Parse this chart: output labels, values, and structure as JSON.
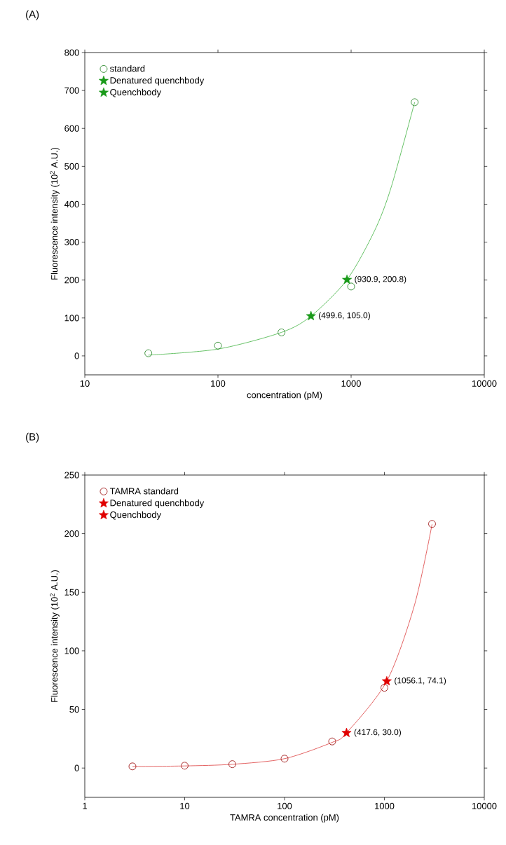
{
  "chart_data": [
    {
      "type": "scatter",
      "title": "(A)",
      "xlabel": "concentration (pM)",
      "ylabel": "Fluorescence intensity (10$^{2}$ A.U.)",
      "log": "x",
      "xlim": [
        10,
        10000
      ],
      "ylim": [
        -50,
        800
      ],
      "xticks": [
        10,
        100,
        1000,
        10000
      ],
      "yticks": [
        0,
        100,
        200,
        300,
        400,
        500,
        600,
        700,
        800
      ],
      "legend": "top left",
      "grid": false,
      "series": [
        {
          "name": "standard",
          "type": "scatter",
          "marker": "circle",
          "color": "#2e8b2e",
          "x": [
            30,
            100,
            300,
            1000,
            3000
          ],
          "values": [
            7,
            27,
            62,
            183,
            669
          ]
        },
        {
          "type": "line",
          "marker": "none",
          "color": "#55bb55",
          "x": [
            30,
            100,
            300,
            499.6,
            930.9,
            1500,
            2000,
            3000
          ],
          "values": [
            2,
            18,
            62,
            105,
            200.8,
            330,
            445,
            669
          ]
        },
        {
          "name": "Denatured quenchbody",
          "type": "scatter",
          "marker": "star",
          "color": "#1a9a1a",
          "x": [
            930.9
          ],
          "values": [
            200.8
          ]
        },
        {
          "name": "Quenchbody",
          "type": "scatter",
          "marker": "star",
          "color": "#1a9a1a",
          "x": [
            499.6
          ],
          "values": [
            105.0
          ]
        }
      ],
      "annotations": [
        {
          "text": "(930.9, 200.8)",
          "x": 930.9,
          "y": 200.8
        },
        {
          "text": "(499.6, 105.0)",
          "x": 499.6,
          "y": 105.0
        }
      ]
    },
    {
      "type": "scatter",
      "title": "(B)",
      "xlabel": "TAMRA concentration (pM)",
      "ylabel": "Fluorescence intensity (10$^{2}$ A.U.)",
      "log": "x",
      "xlim": [
        1,
        10000
      ],
      "ylim": [
        -25,
        250
      ],
      "xticks": [
        1,
        10,
        100,
        1000,
        10000
      ],
      "yticks": [
        0,
        50,
        100,
        150,
        200,
        250
      ],
      "legend": "top left",
      "grid": false,
      "series": [
        {
          "name": "TAMRA standard",
          "type": "scatter",
          "marker": "circle",
          "color": "#a01818",
          "x": [
            3,
            10,
            30,
            100,
            300,
            1000,
            3000
          ],
          "values": [
            1.4,
            2,
            3.3,
            8,
            22.7,
            68.5,
            208.3
          ]
        },
        {
          "type": "line",
          "marker": "none",
          "color": "#e05050",
          "x": [
            3,
            10,
            30,
            100,
            300,
            417.6,
            1056.1,
            2000,
            3000
          ],
          "values": [
            1.3,
            1.8,
            3.2,
            8,
            21.9,
            30.0,
            74.1,
            139,
            208
          ]
        },
        {
          "name": "Denatured quenchbody",
          "type": "scatter",
          "marker": "star",
          "color": "#e00000",
          "x": [
            1056.1
          ],
          "values": [
            74.1
          ]
        },
        {
          "name": "Quenchbody",
          "type": "scatter",
          "marker": "star",
          "color": "#e00000",
          "x": [
            417.6
          ],
          "values": [
            30.0
          ]
        }
      ],
      "annotations": [
        {
          "text": "(1056.1, 74.1)",
          "x": 1056.1,
          "y": 74.1
        },
        {
          "text": "(417.6, 30.0)",
          "x": 417.6,
          "y": 30.0
        }
      ]
    }
  ]
}
